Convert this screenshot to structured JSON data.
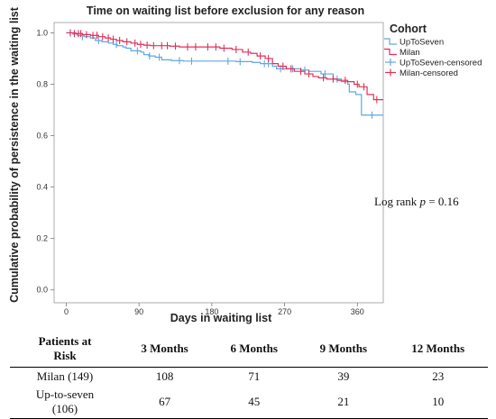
{
  "chart_data": {
    "type": "line",
    "title": "Time on waiting list before exclusion for any reason",
    "xlabel": "Days in waiting list",
    "ylabel": "Cumulative probability of persistence in the waiting list",
    "xlim": [
      -15,
      392
    ],
    "ylim": [
      -0.05,
      1.04
    ],
    "xticks": [
      0,
      90,
      180,
      270,
      360
    ],
    "yticks": [
      0.0,
      0.2,
      0.4,
      0.6,
      0.8,
      1.0
    ],
    "grid": false,
    "legend": {
      "title": "Cohort",
      "placement": "top-right",
      "entries": [
        "UpToSeven",
        "Milan",
        "UpToSeven-censored",
        "Milan-censored"
      ]
    },
    "annotation": {
      "prefix": "Log rank ",
      "italic": "p",
      "suffix": " = 0.16"
    },
    "series": [
      {
        "name": "UpToSeven",
        "color": "#5fa8e0",
        "x": [
          0,
          8,
          14,
          22,
          30,
          36,
          44,
          52,
          58,
          63,
          70,
          74,
          80,
          92,
          96,
          102,
          110,
          118,
          130,
          145,
          160,
          190,
          210,
          230,
          240,
          255,
          260,
          275,
          285,
          290,
          300,
          315,
          330,
          340,
          348,
          350,
          358,
          365,
          372,
          392
        ],
        "y": [
          1.0,
          0.995,
          0.99,
          0.985,
          0.98,
          0.97,
          0.965,
          0.96,
          0.955,
          0.95,
          0.945,
          0.94,
          0.93,
          0.925,
          0.915,
          0.91,
          0.905,
          0.895,
          0.892,
          0.89,
          0.89,
          0.89,
          0.888,
          0.885,
          0.88,
          0.87,
          0.86,
          0.86,
          0.86,
          0.855,
          0.85,
          0.84,
          0.82,
          0.81,
          0.8,
          0.77,
          0.76,
          0.68,
          0.68,
          0.68
        ],
        "censored": [
          [
            20,
            0.985
          ],
          [
            40,
            0.97
          ],
          [
            62,
            0.955
          ],
          [
            88,
            0.93
          ],
          [
            103,
            0.91
          ],
          [
            115,
            0.905
          ],
          [
            140,
            0.892
          ],
          [
            155,
            0.89
          ],
          [
            200,
            0.89
          ],
          [
            215,
            0.888
          ],
          [
            245,
            0.88
          ],
          [
            250,
            0.88
          ],
          [
            265,
            0.86
          ],
          [
            280,
            0.86
          ],
          [
            295,
            0.855
          ],
          [
            320,
            0.84
          ],
          [
            335,
            0.82
          ],
          [
            378,
            0.68
          ]
        ]
      },
      {
        "name": "Milan",
        "color": "#e0305a",
        "x": [
          0,
          12,
          20,
          30,
          40,
          48,
          55,
          62,
          70,
          80,
          88,
          96,
          104,
          112,
          128,
          140,
          170,
          190,
          205,
          218,
          228,
          236,
          246,
          255,
          262,
          272,
          282,
          295,
          305,
          312,
          322,
          335,
          348,
          356,
          362,
          372,
          380,
          392
        ],
        "y": [
          1.0,
          0.997,
          0.993,
          0.99,
          0.985,
          0.98,
          0.975,
          0.97,
          0.965,
          0.96,
          0.955,
          0.952,
          0.95,
          0.95,
          0.948,
          0.945,
          0.945,
          0.94,
          0.935,
          0.925,
          0.92,
          0.91,
          0.9,
          0.88,
          0.87,
          0.86,
          0.85,
          0.84,
          0.83,
          0.825,
          0.82,
          0.815,
          0.81,
          0.8,
          0.79,
          0.76,
          0.74,
          0.74
        ],
        "censored": [
          [
            5,
            1.0
          ],
          [
            10,
            0.997
          ],
          [
            15,
            0.997
          ],
          [
            18,
            0.997
          ],
          [
            25,
            0.993
          ],
          [
            33,
            0.99
          ],
          [
            38,
            0.99
          ],
          [
            45,
            0.985
          ],
          [
            52,
            0.98
          ],
          [
            58,
            0.975
          ],
          [
            66,
            0.97
          ],
          [
            75,
            0.965
          ],
          [
            85,
            0.96
          ],
          [
            92,
            0.955
          ],
          [
            100,
            0.952
          ],
          [
            108,
            0.95
          ],
          [
            118,
            0.95
          ],
          [
            125,
            0.95
          ],
          [
            135,
            0.948
          ],
          [
            150,
            0.945
          ],
          [
            160,
            0.945
          ],
          [
            175,
            0.945
          ],
          [
            185,
            0.945
          ],
          [
            195,
            0.94
          ],
          [
            210,
            0.935
          ],
          [
            225,
            0.925
          ],
          [
            240,
            0.91
          ],
          [
            250,
            0.9
          ],
          [
            268,
            0.87
          ],
          [
            278,
            0.86
          ],
          [
            290,
            0.85
          ],
          [
            300,
            0.84
          ],
          [
            318,
            0.825
          ],
          [
            330,
            0.82
          ],
          [
            345,
            0.815
          ],
          [
            360,
            0.8
          ],
          [
            368,
            0.79
          ],
          [
            384,
            0.74
          ]
        ]
      }
    ]
  },
  "risk_table": {
    "headers": [
      "Patients at\nRisk",
      "3 Months",
      "6 Months",
      "9 Months",
      "12 Months"
    ],
    "rows": [
      {
        "label": "Milan (149)",
        "values": [
          "108",
          "71",
          "39",
          "23"
        ]
      },
      {
        "label": "Up-to-seven\n(106)",
        "values": [
          "67",
          "45",
          "21",
          "10"
        ]
      }
    ]
  }
}
